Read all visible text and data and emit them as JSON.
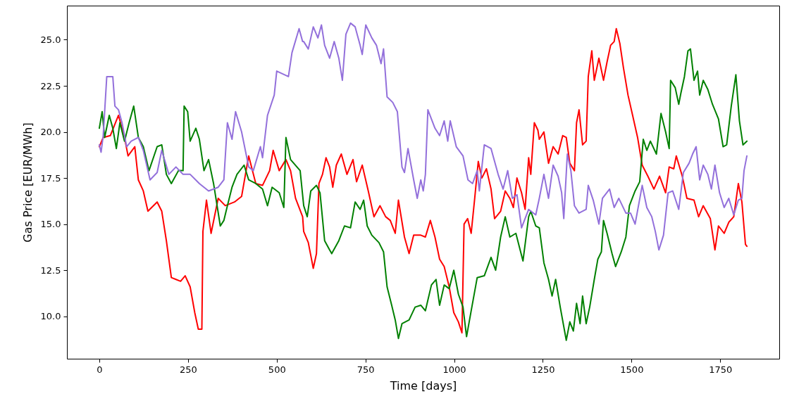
{
  "chart_data": {
    "type": "line",
    "xlabel": "Time [days]",
    "ylabel": "Gas Price [EUR/MWh]",
    "xlim": [
      -91.25,
      1916.25
    ],
    "ylim": [
      7.7,
      26.85
    ],
    "xticks": [
      0,
      250,
      500,
      750,
      1000,
      1250,
      1500,
      1750
    ],
    "yticks": [
      {
        "value": 10,
        "label": "10.0"
      },
      {
        "value": 12.5,
        "label": "12.5"
      },
      {
        "value": 15,
        "label": "15.0"
      },
      {
        "value": 17.5,
        "label": "17.5"
      },
      {
        "value": 20,
        "label": "20.0"
      },
      {
        "value": 22.5,
        "label": "22.5"
      },
      {
        "value": 25,
        "label": "25.0"
      }
    ],
    "grid": false,
    "marker": "none",
    "line_style": "solid",
    "series": [
      {
        "color": "#ff0000",
        "x": [
          0,
          11,
          31,
          54,
          71,
          81,
          100,
          110,
          124,
          137,
          163,
          176,
          189,
          203,
          216,
          229,
          242,
          256,
          269,
          279,
          289,
          292,
          302,
          315,
          335,
          355,
          381,
          401,
          421,
          441,
          460,
          480,
          490,
          507,
          526,
          539,
          553,
          573,
          576,
          589,
          603,
          612,
          619,
          629,
          639,
          649,
          658,
          668,
          682,
          698,
          715,
          725,
          741,
          758,
          774,
          791,
          807,
          820,
          834,
          843,
          860,
          873,
          886,
          906,
          919,
          933,
          946,
          959,
          972,
          986,
          999,
          1012,
          1022,
          1028,
          1038,
          1048,
          1058,
          1068,
          1078,
          1091,
          1104,
          1114,
          1131,
          1144,
          1157,
          1167,
          1177,
          1190,
          1200,
          1210,
          1216,
          1226,
          1236,
          1240,
          1253,
          1266,
          1279,
          1293,
          1306,
          1316,
          1326,
          1339,
          1345,
          1352,
          1362,
          1372,
          1378,
          1388,
          1395,
          1408,
          1421,
          1431,
          1441,
          1451,
          1457,
          1467,
          1477,
          1490,
          1503,
          1517,
          1530,
          1546,
          1563,
          1579,
          1596,
          1606,
          1619,
          1626,
          1643,
          1656,
          1676,
          1689,
          1702,
          1722,
          1735,
          1745,
          1761,
          1774,
          1788,
          1801,
          1811,
          1821,
          1825
        ],
        "values": [
          19.2,
          19.7,
          19.8,
          20.9,
          19.7,
          18.7,
          19.2,
          17.4,
          16.8,
          15.7,
          16.2,
          15.7,
          14.1,
          12.1,
          12.0,
          11.9,
          12.2,
          11.6,
          10.2,
          9.3,
          9.3,
          14.6,
          16.3,
          14.5,
          16.4,
          16.0,
          16.2,
          16.5,
          18.7,
          17.2,
          17.1,
          17.9,
          19.0,
          17.9,
          18.5,
          17.9,
          16.4,
          15.4,
          14.6,
          14.0,
          12.6,
          13.4,
          17.2,
          17.7,
          18.6,
          18.1,
          17.0,
          18.2,
          18.8,
          17.7,
          18.5,
          17.3,
          18.2,
          16.8,
          15.4,
          16.0,
          15.4,
          15.2,
          14.5,
          16.3,
          14.3,
          13.4,
          14.4,
          14.4,
          14.3,
          15.2,
          14.3,
          13.1,
          12.7,
          11.6,
          10.2,
          9.7,
          9.1,
          15.0,
          15.3,
          14.5,
          16.4,
          18.4,
          17.5,
          18.0,
          16.9,
          15.3,
          15.7,
          16.8,
          16.4,
          15.9,
          17.5,
          16.7,
          15.8,
          18.6,
          17.7,
          20.5,
          20.1,
          19.6,
          20.0,
          18.3,
          19.2,
          18.8,
          19.8,
          19.7,
          18.3,
          17.9,
          20.5,
          21.2,
          19.3,
          19.5,
          23.0,
          24.4,
          22.8,
          24.0,
          22.8,
          23.8,
          24.7,
          24.9,
          25.6,
          24.8,
          23.5,
          22.0,
          20.9,
          19.7,
          18.2,
          17.6,
          16.9,
          17.6,
          16.7,
          18.1,
          18.0,
          18.7,
          17.6,
          16.4,
          16.3,
          15.4,
          16.0,
          15.3,
          13.6,
          14.9,
          14.5,
          15.1,
          15.4,
          17.2,
          16.2,
          13.9,
          13.8
        ]
      },
      {
        "color": "#008000",
        "x": [
          0,
          8,
          15,
          28,
          38,
          48,
          58,
          71,
          84,
          97,
          110,
          124,
          140,
          163,
          176,
          189,
          203,
          223,
          236,
          239,
          249,
          256,
          272,
          282,
          295,
          308,
          322,
          341,
          351,
          361,
          374,
          388,
          408,
          421,
          441,
          460,
          474,
          487,
          507,
          520,
          526,
          539,
          566,
          576,
          586,
          596,
          612,
          622,
          635,
          649,
          655,
          675,
          691,
          708,
          721,
          735,
          745,
          755,
          768,
          788,
          801,
          811,
          824,
          834,
          843,
          853,
          873,
          890,
          906,
          919,
          936,
          949,
          959,
          972,
          986,
          999,
          1012,
          1025,
          1035,
          1048,
          1065,
          1085,
          1104,
          1117,
          1131,
          1144,
          1157,
          1174,
          1194,
          1210,
          1216,
          1230,
          1240,
          1253,
          1266,
          1276,
          1286,
          1299,
          1316,
          1326,
          1336,
          1345,
          1355,
          1362,
          1372,
          1382,
          1395,
          1405,
          1415,
          1421,
          1431,
          1445,
          1455,
          1471,
          1484,
          1494,
          1510,
          1523,
          1533,
          1543,
          1553,
          1570,
          1583,
          1596,
          1606,
          1610,
          1623,
          1633,
          1639,
          1649,
          1659,
          1666,
          1676,
          1686,
          1692,
          1702,
          1715,
          1728,
          1745,
          1758,
          1768,
          1781,
          1794,
          1804,
          1814,
          1825
        ],
        "values": [
          20.2,
          21.1,
          19.7,
          20.9,
          20.2,
          19.1,
          20.5,
          19.5,
          20.5,
          21.4,
          19.7,
          19.2,
          17.9,
          19.2,
          19.3,
          17.7,
          17.2,
          17.9,
          17.9,
          21.4,
          21.1,
          19.5,
          20.2,
          19.6,
          17.9,
          18.5,
          17.2,
          14.9,
          15.2,
          16.0,
          17.0,
          17.7,
          18.2,
          17.4,
          17.2,
          16.9,
          16.0,
          17.0,
          16.7,
          15.9,
          19.7,
          18.5,
          17.9,
          16.0,
          15.4,
          16.8,
          17.1,
          16.7,
          14.1,
          13.6,
          13.4,
          14.1,
          14.9,
          14.8,
          16.2,
          15.8,
          16.3,
          14.9,
          14.4,
          14.0,
          13.5,
          11.6,
          10.6,
          9.8,
          8.8,
          9.6,
          9.8,
          10.5,
          10.6,
          10.3,
          11.7,
          12.0,
          10.6,
          11.7,
          11.5,
          12.5,
          11.2,
          10.5,
          8.9,
          10.3,
          12.1,
          12.2,
          13.2,
          12.5,
          14.3,
          15.4,
          14.3,
          14.5,
          13.0,
          15.4,
          15.7,
          14.9,
          14.8,
          12.9,
          12.0,
          11.1,
          12.0,
          10.5,
          8.7,
          9.7,
          9.2,
          10.7,
          9.6,
          11.1,
          9.6,
          10.5,
          12.0,
          13.1,
          13.5,
          15.2,
          14.5,
          13.4,
          12.7,
          13.5,
          14.3,
          16.0,
          16.8,
          17.3,
          19.6,
          19.0,
          19.5,
          18.8,
          21.0,
          20.0,
          19.1,
          22.8,
          22.4,
          21.5,
          22.1,
          23.0,
          24.4,
          24.5,
          22.8,
          23.3,
          22.0,
          22.8,
          22.3,
          21.5,
          20.7,
          19.2,
          19.3,
          21.4,
          23.1,
          20.6,
          19.3,
          19.5
        ]
      },
      {
        "color": "#9370db",
        "x": [
          0,
          5,
          11,
          21,
          38,
          44,
          54,
          64,
          77,
          90,
          110,
          124,
          143,
          163,
          176,
          196,
          216,
          236,
          256,
          282,
          308,
          335,
          351,
          361,
          374,
          384,
          401,
          421,
          434,
          454,
          460,
          474,
          493,
          500,
          533,
          543,
          563,
          573,
          576,
          589,
          603,
          616,
          626,
          635,
          649,
          662,
          675,
          685,
          695,
          708,
          721,
          735,
          741,
          751,
          768,
          781,
          794,
          801,
          811,
          827,
          840,
          853,
          860,
          870,
          886,
          896,
          906,
          913,
          919,
          926,
          946,
          959,
          972,
          982,
          989,
          1006,
          1025,
          1039,
          1052,
          1065,
          1071,
          1085,
          1104,
          1124,
          1138,
          1151,
          1164,
          1177,
          1190,
          1210,
          1230,
          1240,
          1253,
          1266,
          1279,
          1293,
          1303,
          1309,
          1319,
          1329,
          1339,
          1352,
          1372,
          1378,
          1392,
          1408,
          1418,
          1438,
          1451,
          1464,
          1484,
          1497,
          1510,
          1530,
          1543,
          1557,
          1567,
          1577,
          1590,
          1603,
          1616,
          1633,
          1646,
          1662,
          1672,
          1682,
          1692,
          1702,
          1715,
          1725,
          1735,
          1748,
          1761,
          1774,
          1788,
          1801,
          1811,
          1817,
          1825
        ],
        "values": [
          19.3,
          18.9,
          19.8,
          23.0,
          23.0,
          21.4,
          21.2,
          20.5,
          19.2,
          19.5,
          19.7,
          19.0,
          17.4,
          17.8,
          19.0,
          17.7,
          18.1,
          17.7,
          17.7,
          17.2,
          16.8,
          17.0,
          17.4,
          20.5,
          19.6,
          21.1,
          20.0,
          18.1,
          17.9,
          19.2,
          18.6,
          20.9,
          22.0,
          23.3,
          23.0,
          24.3,
          25.6,
          24.9,
          24.9,
          24.5,
          25.7,
          25.1,
          25.8,
          24.7,
          24.0,
          24.9,
          24.0,
          22.8,
          25.3,
          25.9,
          25.7,
          24.7,
          24.2,
          25.8,
          25.1,
          24.7,
          23.7,
          24.5,
          21.9,
          21.6,
          21.1,
          18.1,
          17.8,
          19.1,
          17.4,
          16.4,
          17.4,
          16.8,
          17.7,
          21.2,
          20.2,
          19.8,
          20.6,
          19.5,
          20.6,
          19.2,
          18.7,
          17.4,
          17.2,
          17.9,
          16.8,
          19.3,
          19.1,
          17.7,
          16.9,
          17.9,
          16.4,
          16.6,
          14.8,
          15.8,
          15.5,
          16.4,
          17.7,
          16.4,
          18.2,
          17.6,
          16.7,
          15.3,
          18.8,
          17.9,
          16.0,
          15.6,
          15.8,
          17.1,
          16.3,
          15.0,
          16.4,
          16.9,
          15.9,
          16.4,
          15.6,
          15.6,
          15.0,
          17.1,
          15.9,
          15.4,
          14.6,
          13.6,
          14.4,
          16.7,
          16.8,
          15.8,
          17.8,
          18.3,
          18.8,
          19.2,
          17.4,
          18.2,
          17.7,
          16.9,
          18.2,
          16.7,
          15.9,
          16.4,
          15.5,
          16.3,
          16.4,
          17.9,
          18.7
        ]
      }
    ]
  }
}
